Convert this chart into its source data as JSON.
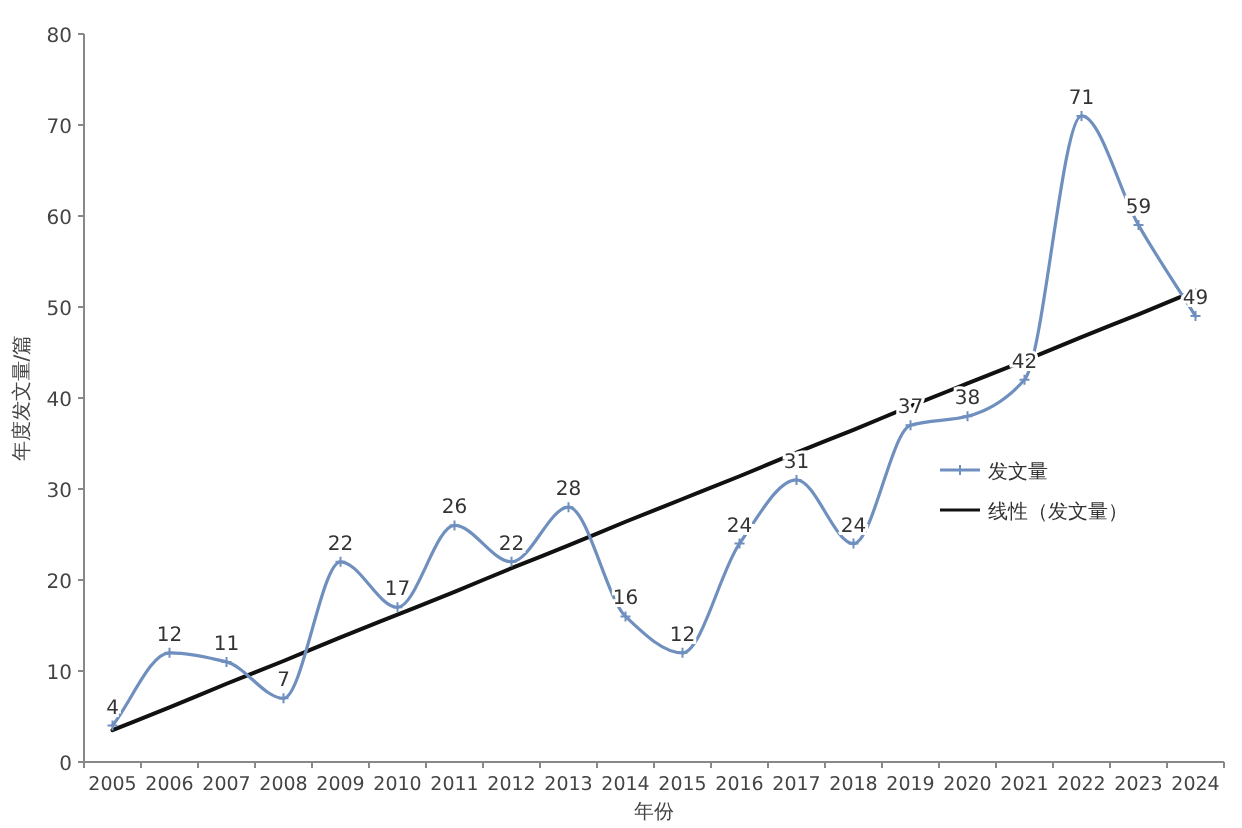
{
  "chart_data": {
    "type": "line",
    "xlabel": "年份",
    "ylabel": "年度发文量/篇",
    "categories": [
      "2005",
      "2006",
      "2007",
      "2008",
      "2009",
      "2010",
      "2011",
      "2012",
      "2013",
      "2014",
      "2015",
      "2016",
      "2017",
      "2018",
      "2019",
      "2020",
      "2021",
      "2022",
      "2023",
      "2024"
    ],
    "series": [
      {
        "name": "发文量",
        "color": "#6f8fbf",
        "values": [
          4,
          12,
          11,
          7,
          22,
          17,
          26,
          22,
          28,
          16,
          12,
          24,
          31,
          24,
          37,
          38,
          42,
          71,
          59,
          49
        ],
        "marker": "cross",
        "data_labels": true
      },
      {
        "name": "线性（发文量）",
        "type": "line",
        "color": "#111111",
        "values": [
          3.5,
          6.0,
          8.6,
          11.1,
          13.7,
          16.2,
          18.7,
          21.3,
          23.8,
          26.4,
          28.9,
          31.4,
          34.0,
          36.5,
          39.1,
          41.6,
          44.1,
          46.7,
          49.2,
          51.8
        ]
      }
    ],
    "ylim": [
      0,
      80
    ],
    "yticks": [
      0,
      10,
      20,
      30,
      40,
      50,
      60,
      70,
      80
    ],
    "legend": "right"
  }
}
